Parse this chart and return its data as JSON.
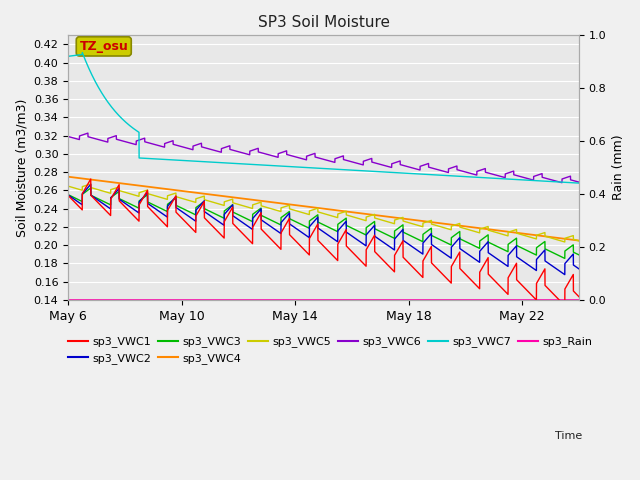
{
  "title": "SP3 Soil Moisture",
  "xlabel": "Time",
  "ylabel_left": "Soil Moisture (m3/m3)",
  "ylabel_right": "Rain (mm)",
  "ylim_left": [
    0.14,
    0.43
  ],
  "ylim_right": [
    0.0,
    1.0
  ],
  "xlim": [
    0,
    18
  ],
  "xtick_labels": [
    "May 6",
    "May 10",
    "May 14",
    "May 18",
    "May 22"
  ],
  "xtick_positions": [
    0,
    4,
    8,
    12,
    16
  ],
  "ytick_left": [
    0.14,
    0.16,
    0.18,
    0.2,
    0.22,
    0.24,
    0.26,
    0.28,
    0.3,
    0.32,
    0.34,
    0.36,
    0.38,
    0.4,
    0.42
  ],
  "ytick_right": [
    0.0,
    0.2,
    0.4,
    0.6,
    0.8,
    1.0
  ],
  "fig_bg_color": "#f0f0f0",
  "plot_bg_color": "#e8e8e8",
  "series_colors": {
    "sp3_VWC1": "#ff0000",
    "sp3_VWC2": "#0000cc",
    "sp3_VWC3": "#00bb00",
    "sp3_VWC4": "#ff8800",
    "sp3_VWC5": "#cccc00",
    "sp3_VWC6": "#8800cc",
    "sp3_VWC7": "#00cccc",
    "sp3_Rain": "#ff00aa"
  },
  "annotation_text": "TZ_osu",
  "annotation_fg": "#cc0000",
  "annotation_bg": "#cccc00",
  "annotation_border": "#888800",
  "legend_order": [
    "sp3_VWC1",
    "sp3_VWC2",
    "sp3_VWC3",
    "sp3_VWC4",
    "sp3_VWC5",
    "sp3_VWC6",
    "sp3_VWC7",
    "sp3_Rain"
  ]
}
